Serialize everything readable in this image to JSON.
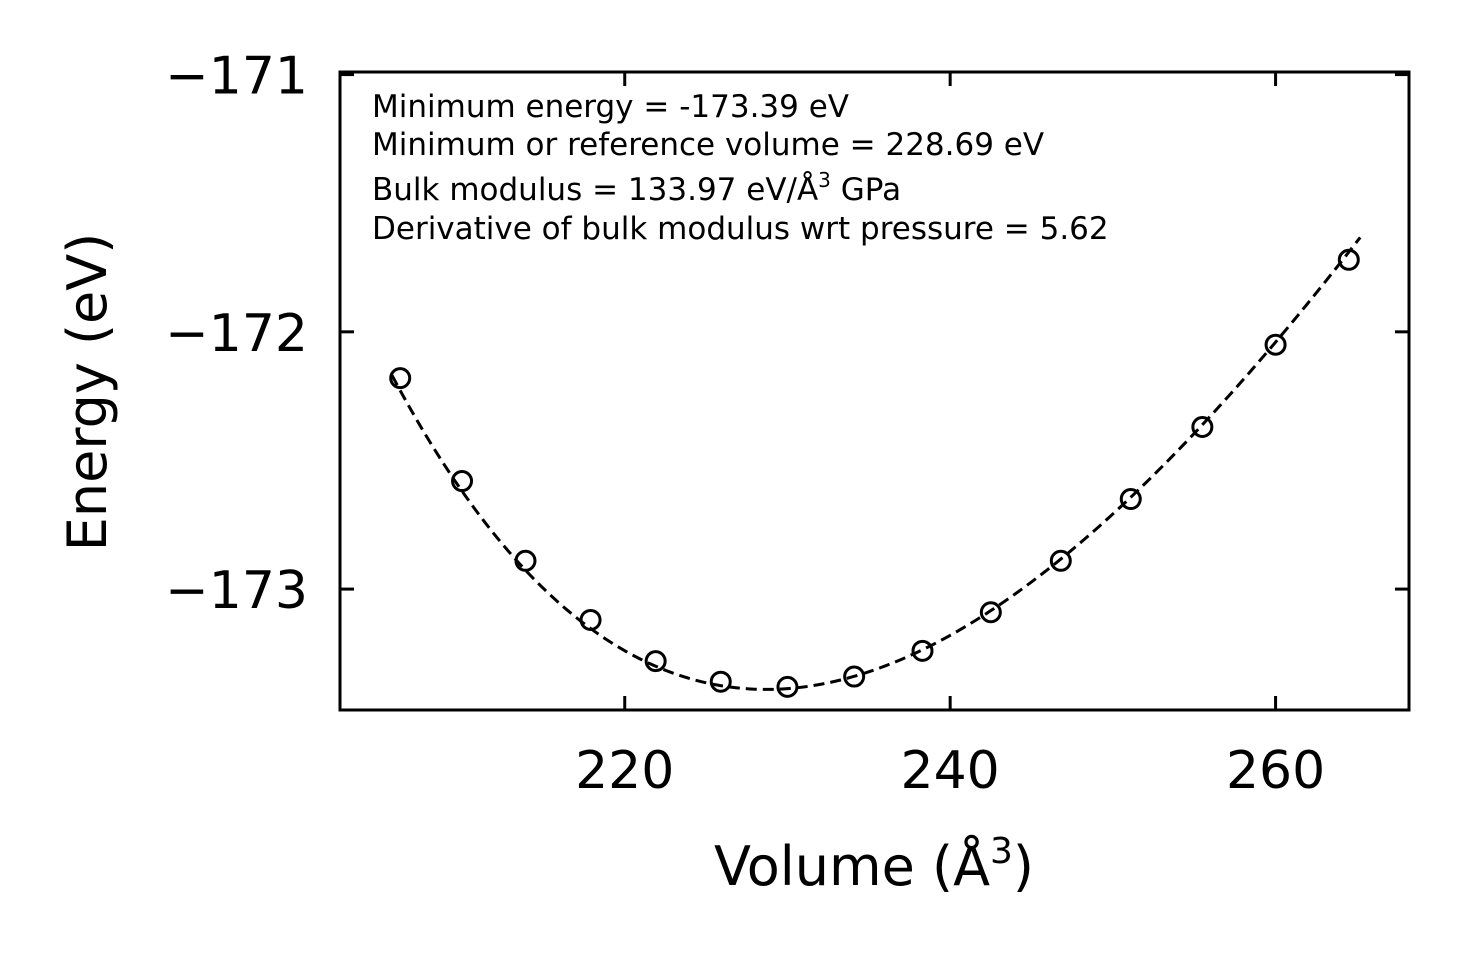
{
  "chart_data": {
    "type": "scatter",
    "title": "",
    "xlabel": "Volume (Å",
    "xlabel_sup": "3",
    "xlabel_suffix": ")",
    "ylabel": "Energy (eV)",
    "xlim": [
      202.5,
      268.2
    ],
    "ylim": [
      -173.47,
      -170.99
    ],
    "x_ticks": [
      {
        "value": 220,
        "label": "220"
      },
      {
        "value": 240,
        "label": "240"
      },
      {
        "value": 260,
        "label": "260"
      }
    ],
    "y_ticks": [
      {
        "value": -171,
        "label": "−171"
      },
      {
        "value": -172,
        "label": "−172"
      },
      {
        "value": -173,
        "label": "−173"
      }
    ],
    "grid": false,
    "series": [
      {
        "name": "data",
        "style": "open-circle",
        "x": [
          206.2,
          210.0,
          213.9,
          217.9,
          221.9,
          225.9,
          230.0,
          234.1,
          238.3,
          242.5,
          246.8,
          251.1,
          255.5,
          260.0,
          264.5
        ],
        "y": [
          -172.18,
          -172.58,
          -172.89,
          -173.12,
          -173.28,
          -173.36,
          -173.38,
          -173.34,
          -173.24,
          -173.09,
          -172.89,
          -172.65,
          -172.37,
          -172.05,
          -171.72
        ]
      },
      {
        "name": "fit",
        "style": "dashed-line",
        "eos": {
          "E0": -173.39,
          "V0": 228.69,
          "B0": 133.97,
          "Bp": 5.62
        },
        "x_range": [
          205.7,
          265.2
        ]
      }
    ],
    "annotations": [
      {
        "text": "Minimum energy = -173.39 eV"
      },
      {
        "text": "Minimum or reference volume = 228.69 eV"
      },
      {
        "text": "Bulk modulus = 133.97 eV/Å",
        "sup": "3",
        "suffix": " GPa"
      },
      {
        "text": "Derivative of bulk modulus wrt pressure = 5.62"
      }
    ],
    "colors": {
      "marker": "#000000",
      "line": "#000000",
      "axes": "#000000",
      "background": "#ffffff"
    }
  }
}
